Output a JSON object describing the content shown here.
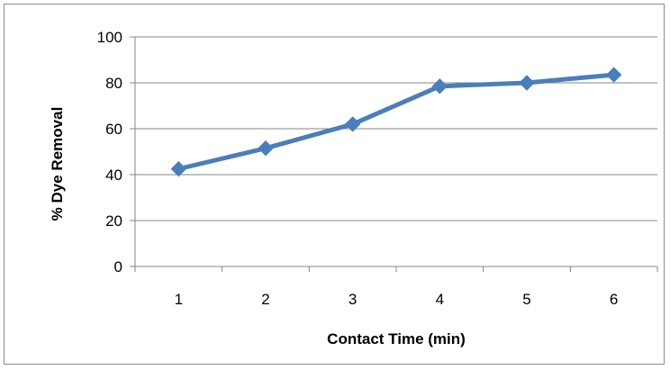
{
  "chart_data": {
    "type": "line",
    "title": "",
    "xlabel": "Contact Time (min)",
    "ylabel": "% Dye Removal",
    "x": [
      1,
      2,
      3,
      4,
      5,
      6
    ],
    "x_tick_labels": [
      "1",
      "2",
      "3",
      "4",
      "5",
      "6"
    ],
    "y_tick_labels": [
      "0",
      "20",
      "40",
      "60",
      "80",
      "100"
    ],
    "ylim": [
      0,
      100
    ],
    "y_ticks": [
      0,
      20,
      40,
      60,
      80,
      100
    ],
    "grid": "horizontal",
    "legend": "none",
    "series": [
      {
        "values": [
          42.5,
          51.5,
          62,
          78.5,
          80,
          83.5
        ],
        "color": "#4a7ebb",
        "marker": "diamond"
      }
    ]
  }
}
